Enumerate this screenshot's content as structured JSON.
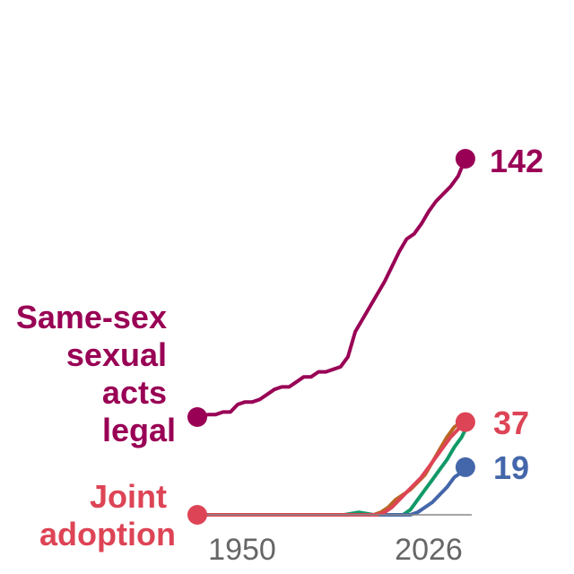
{
  "chart_data": {
    "type": "line",
    "x_range": [
      1950,
      2024
    ],
    "ylim": [
      0,
      142
    ],
    "xticks": [
      "1950",
      "2026"
    ],
    "series": [
      {
        "name": "Same-sex sexual acts legal",
        "label_lines": [
          "Same-sex",
          "sexual",
          "acts",
          "legal"
        ],
        "end_value": "142",
        "color": "#990055",
        "points": [
          [
            1950,
            39
          ],
          [
            1953,
            40
          ],
          [
            1955,
            40
          ],
          [
            1957,
            41
          ],
          [
            1959,
            41
          ],
          [
            1961,
            44
          ],
          [
            1963,
            45
          ],
          [
            1965,
            45
          ],
          [
            1967,
            46
          ],
          [
            1969,
            48
          ],
          [
            1971,
            50
          ],
          [
            1973,
            51
          ],
          [
            1975,
            51
          ],
          [
            1977,
            53
          ],
          [
            1979,
            55
          ],
          [
            1981,
            55
          ],
          [
            1983,
            57
          ],
          [
            1985,
            57
          ],
          [
            1987,
            58
          ],
          [
            1989,
            59
          ],
          [
            1991,
            63
          ],
          [
            1993,
            73
          ],
          [
            1995,
            78
          ],
          [
            1997,
            83
          ],
          [
            1999,
            88
          ],
          [
            2001,
            93
          ],
          [
            2003,
            99
          ],
          [
            2005,
            105
          ],
          [
            2007,
            110
          ],
          [
            2009,
            112
          ],
          [
            2011,
            116
          ],
          [
            2013,
            121
          ],
          [
            2015,
            125
          ],
          [
            2017,
            128
          ],
          [
            2019,
            131
          ],
          [
            2021,
            135
          ],
          [
            2023,
            142
          ]
        ]
      },
      {
        "name": "Joint adoption",
        "label_lines": [
          "Joint",
          "adoption"
        ],
        "end_value": "37",
        "color": "#dd4455",
        "points": [
          [
            1950,
            0
          ],
          [
            1997,
            0
          ],
          [
            1999,
            0
          ],
          [
            2001,
            1
          ],
          [
            2003,
            3
          ],
          [
            2005,
            6
          ],
          [
            2007,
            9
          ],
          [
            2009,
            12
          ],
          [
            2011,
            15
          ],
          [
            2013,
            19
          ],
          [
            2015,
            23
          ],
          [
            2017,
            27
          ],
          [
            2019,
            31
          ],
          [
            2021,
            34
          ],
          [
            2023,
            37
          ]
        ]
      },
      {
        "color": "#bb6622",
        "points": [
          [
            1950,
            0
          ],
          [
            1998,
            0
          ],
          [
            2000,
            1
          ],
          [
            2002,
            3
          ],
          [
            2004,
            6
          ],
          [
            2006,
            8
          ],
          [
            2008,
            10
          ],
          [
            2010,
            13
          ],
          [
            2012,
            16
          ],
          [
            2014,
            21
          ],
          [
            2016,
            26
          ],
          [
            2018,
            31
          ],
          [
            2020,
            35
          ],
          [
            2022,
            37
          ],
          [
            2023,
            35
          ]
        ]
      },
      {
        "color": "#119966",
        "points": [
          [
            1950,
            0
          ],
          [
            1990,
            0
          ],
          [
            1994,
            1
          ],
          [
            1998,
            0
          ],
          [
            2006,
            0
          ],
          [
            2008,
            2
          ],
          [
            2010,
            6
          ],
          [
            2012,
            10
          ],
          [
            2014,
            14
          ],
          [
            2016,
            18
          ],
          [
            2018,
            22
          ],
          [
            2020,
            27
          ],
          [
            2022,
            31
          ],
          [
            2023,
            34
          ]
        ]
      },
      {
        "end_value": "19",
        "color": "#4466aa",
        "points": [
          [
            1950,
            0
          ],
          [
            2008,
            0
          ],
          [
            2010,
            1
          ],
          [
            2012,
            3
          ],
          [
            2014,
            5
          ],
          [
            2016,
            8
          ],
          [
            2018,
            11
          ],
          [
            2020,
            15
          ],
          [
            2022,
            17
          ],
          [
            2023,
            19
          ]
        ]
      }
    ]
  }
}
